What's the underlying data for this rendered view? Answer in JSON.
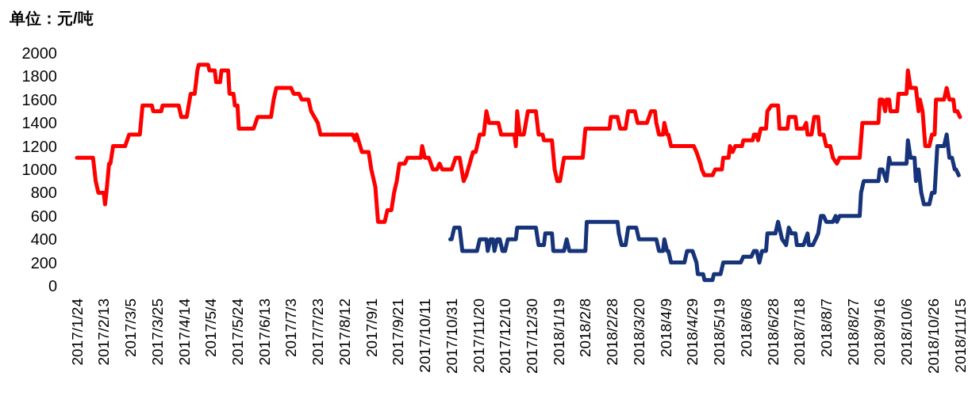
{
  "chart_data": {
    "type": "line",
    "ylabel": "单位：元/吨",
    "xlim": [
      "2017-01-24",
      "2018-11-15"
    ],
    "ylim": [
      0,
      2000
    ],
    "yticks": [
      0,
      200,
      400,
      600,
      800,
      1000,
      1200,
      1400,
      1600,
      1800,
      2000
    ],
    "xticks": [
      {
        "value": "2017-01-24",
        "label": "2017/1/24"
      },
      {
        "value": "2017-02-13",
        "label": "2017/2/13"
      },
      {
        "value": "2017-03-05",
        "label": "2017/3/5"
      },
      {
        "value": "2017-03-25",
        "label": "2017/3/25"
      },
      {
        "value": "2017-04-14",
        "label": "2017/4/14"
      },
      {
        "value": "2017-05-04",
        "label": "2017/5/4"
      },
      {
        "value": "2017-05-24",
        "label": "2017/5/24"
      },
      {
        "value": "2017-06-13",
        "label": "2017/6/13"
      },
      {
        "value": "2017-07-03",
        "label": "2017/7/3"
      },
      {
        "value": "2017-07-23",
        "label": "2017/7/23"
      },
      {
        "value": "2017-08-12",
        "label": "2017/8/12"
      },
      {
        "value": "2017-09-01",
        "label": "2017/9/1"
      },
      {
        "value": "2017-09-21",
        "label": "2017/9/21"
      },
      {
        "value": "2017-10-11",
        "label": "2017/10/11"
      },
      {
        "value": "2017-10-31",
        "label": "2017/10/31"
      },
      {
        "value": "2017-11-20",
        "label": "2017/11/20"
      },
      {
        "value": "2017-12-10",
        "label": "2017/12/10"
      },
      {
        "value": "2017-12-30",
        "label": "2017/12/30"
      },
      {
        "value": "2018-01-19",
        "label": "2018/1/19"
      },
      {
        "value": "2018-02-08",
        "label": "2018/2/8"
      },
      {
        "value": "2018-02-28",
        "label": "2018/2/28"
      },
      {
        "value": "2018-03-20",
        "label": "2018/3/20"
      },
      {
        "value": "2018-04-09",
        "label": "2018/4/9"
      },
      {
        "value": "2018-04-29",
        "label": "2018/4/29"
      },
      {
        "value": "2018-05-19",
        "label": "2018/5/19"
      },
      {
        "value": "2018-06-08",
        "label": "2018/6/8"
      },
      {
        "value": "2018-06-28",
        "label": "2018/6/28"
      },
      {
        "value": "2018-07-18",
        "label": "2018/7/18"
      },
      {
        "value": "2018-08-07",
        "label": "2018/8/7"
      },
      {
        "value": "2018-08-27",
        "label": "2018/8/27"
      },
      {
        "value": "2018-09-16",
        "label": "2018/9/16"
      },
      {
        "value": "2018-10-06",
        "label": "2018/10/6"
      },
      {
        "value": "2018-10-26",
        "label": "2018/10/26"
      },
      {
        "value": "2018-11-15",
        "label": "2018/11/15"
      }
    ],
    "grid": false,
    "marker": "none",
    "line_style": "solid",
    "series": [
      {
        "color": "#ff0000",
        "x": [
          "2017-01-24",
          "2017-02-05",
          "2017-02-07",
          "2017-02-09",
          "2017-02-13",
          "2017-02-14",
          "2017-02-15",
          "2017-02-17",
          "2017-02-18",
          "2017-02-20",
          "2017-03-01",
          "2017-03-04",
          "2017-03-12",
          "2017-03-14",
          "2017-03-21",
          "2017-03-22",
          "2017-03-28",
          "2017-03-29",
          "2017-04-10",
          "2017-04-12",
          "2017-04-16",
          "2017-04-19",
          "2017-04-22",
          "2017-04-24",
          "2017-04-25",
          "2017-05-02",
          "2017-05-03",
          "2017-05-07",
          "2017-05-08",
          "2017-05-11",
          "2017-05-12",
          "2017-05-17",
          "2017-05-18",
          "2017-05-21",
          "2017-05-22",
          "2017-05-24",
          "2017-05-25",
          "2017-06-05",
          "2017-06-08",
          "2017-06-18",
          "2017-06-20",
          "2017-06-22",
          "2017-07-03",
          "2017-07-05",
          "2017-07-09",
          "2017-07-11",
          "2017-07-16",
          "2017-07-18",
          "2017-07-23",
          "2017-07-25",
          "2017-08-18",
          "2017-08-20",
          "2017-08-21",
          "2017-08-25",
          "2017-08-30",
          "2017-09-01",
          "2017-09-04",
          "2017-09-06",
          "2017-09-11",
          "2017-09-13",
          "2017-09-16",
          "2017-09-18",
          "2017-09-20",
          "2017-09-22",
          "2017-09-26",
          "2017-09-28",
          "2017-10-08",
          "2017-10-09",
          "2017-10-11",
          "2017-10-14",
          "2017-10-17",
          "2017-10-20",
          "2017-10-22",
          "2017-10-24",
          "2017-10-31",
          "2017-11-03",
          "2017-11-06",
          "2017-11-09",
          "2017-11-11",
          "2017-11-16",
          "2017-11-18",
          "2017-11-21",
          "2017-11-24",
          "2017-11-26",
          "2017-11-28",
          "2017-12-05",
          "2017-12-07",
          "2017-12-17",
          "2017-12-18",
          "2017-12-19",
          "2017-12-21",
          "2017-12-24",
          "2017-12-27",
          "2018-01-02",
          "2018-01-04",
          "2018-01-07",
          "2018-01-08",
          "2018-01-14",
          "2018-01-16",
          "2018-01-18",
          "2018-01-20",
          "2018-01-23",
          "2018-02-06",
          "2018-02-08",
          "2018-02-26",
          "2018-02-27",
          "2018-03-04",
          "2018-03-06",
          "2018-03-10",
          "2018-03-12",
          "2018-03-17",
          "2018-03-19",
          "2018-03-26",
          "2018-03-29",
          "2018-04-01",
          "2018-04-02",
          "2018-04-04",
          "2018-04-07",
          "2018-04-08",
          "2018-04-10",
          "2018-04-11",
          "2018-04-13",
          "2018-04-30",
          "2018-05-02",
          "2018-05-05",
          "2018-05-06",
          "2018-05-08",
          "2018-05-14",
          "2018-05-16",
          "2018-05-21",
          "2018-05-22",
          "2018-05-26",
          "2018-05-27",
          "2018-05-29",
          "2018-05-31",
          "2018-06-05",
          "2018-06-06",
          "2018-06-13",
          "2018-06-14",
          "2018-06-16",
          "2018-06-17",
          "2018-06-19",
          "2018-06-23",
          "2018-06-24",
          "2018-06-27",
          "2018-07-02",
          "2018-07-03",
          "2018-07-09",
          "2018-07-10",
          "2018-07-15",
          "2018-07-16",
          "2018-07-21",
          "2018-07-23",
          "2018-07-24",
          "2018-07-27",
          "2018-07-29",
          "2018-08-01",
          "2018-08-02",
          "2018-08-05",
          "2018-08-07",
          "2018-08-10",
          "2018-08-12",
          "2018-08-15",
          "2018-08-17",
          "2018-09-01",
          "2018-09-03",
          "2018-09-15",
          "2018-09-16",
          "2018-09-18",
          "2018-09-20",
          "2018-09-21",
          "2018-09-23",
          "2018-09-24",
          "2018-09-29",
          "2018-09-30",
          "2018-10-06",
          "2018-10-07",
          "2018-10-09",
          "2018-10-13",
          "2018-10-15",
          "2018-10-16",
          "2018-10-18",
          "2018-10-20",
          "2018-10-23",
          "2018-10-25",
          "2018-10-27",
          "2018-10-28",
          "2018-11-03",
          "2018-11-05",
          "2018-11-07",
          "2018-11-10",
          "2018-11-11",
          "2018-11-13",
          "2018-11-15"
        ],
        "values": [
          1100,
          1100,
          900,
          800,
          800,
          700,
          800,
          1050,
          1050,
          1200,
          1200,
          1300,
          1300,
          1550,
          1550,
          1500,
          1500,
          1550,
          1550,
          1450,
          1450,
          1650,
          1650,
          1850,
          1900,
          1900,
          1850,
          1850,
          1750,
          1750,
          1850,
          1850,
          1650,
          1650,
          1550,
          1550,
          1350,
          1350,
          1450,
          1450,
          1600,
          1700,
          1700,
          1650,
          1650,
          1600,
          1600,
          1500,
          1400,
          1300,
          1300,
          1250,
          1300,
          1150,
          1150,
          1000,
          850,
          550,
          550,
          650,
          650,
          800,
          900,
          1050,
          1050,
          1100,
          1100,
          1200,
          1100,
          1100,
          1000,
          1000,
          1050,
          1000,
          1000,
          1100,
          1100,
          900,
          950,
          1150,
          1150,
          1300,
          1300,
          1500,
          1400,
          1400,
          1300,
          1300,
          1200,
          1500,
          1300,
          1300,
          1500,
          1500,
          1300,
          1300,
          1250,
          1250,
          1000,
          900,
          900,
          1100,
          1100,
          1350,
          1350,
          1450,
          1450,
          1350,
          1350,
          1500,
          1500,
          1400,
          1400,
          1500,
          1500,
          1400,
          1300,
          1300,
          1400,
          1300,
          1300,
          1200,
          1200,
          1150,
          1050,
          1000,
          950,
          950,
          1000,
          1000,
          1100,
          1100,
          1200,
          1150,
          1200,
          1200,
          1250,
          1250,
          1300,
          1300,
          1250,
          1350,
          1350,
          1500,
          1550,
          1550,
          1350,
          1350,
          1450,
          1450,
          1350,
          1350,
          1400,
          1300,
          1300,
          1450,
          1450,
          1300,
          1300,
          1200,
          1200,
          1100,
          1050,
          1100,
          1100,
          1400,
          1400,
          1600,
          1600,
          1500,
          1600,
          1600,
          1500,
          1500,
          1650,
          1650,
          1850,
          1700,
          1700,
          1500,
          1600,
          1500,
          1200,
          1200,
          1300,
          1300,
          1600,
          1600,
          1700,
          1600,
          1600,
          1500,
          1500,
          1450
        ]
      },
      {
        "color": "#17347a",
        "x": [
          "2017-10-30",
          "2017-10-31",
          "2017-11-02",
          "2017-11-06",
          "2017-11-08",
          "2017-11-19",
          "2017-11-21",
          "2017-11-26",
          "2017-11-27",
          "2017-11-29",
          "2017-12-01",
          "2017-12-02",
          "2017-12-04",
          "2017-12-06",
          "2017-12-08",
          "2017-12-10",
          "2017-12-12",
          "2017-12-18",
          "2017-12-19",
          "2018-01-02",
          "2018-01-04",
          "2018-01-08",
          "2018-01-09",
          "2018-01-14",
          "2018-01-15",
          "2018-01-23",
          "2018-01-25",
          "2018-01-27",
          "2018-02-08",
          "2018-02-09",
          "2018-03-04",
          "2018-03-05",
          "2018-03-07",
          "2018-03-10",
          "2018-03-12",
          "2018-03-18",
          "2018-03-20",
          "2018-04-02",
          "2018-04-04",
          "2018-04-07",
          "2018-04-08",
          "2018-04-10",
          "2018-04-11",
          "2018-04-13",
          "2018-04-23",
          "2018-04-25",
          "2018-04-29",
          "2018-05-02",
          "2018-05-03",
          "2018-05-07",
          "2018-05-08",
          "2018-05-14",
          "2018-05-15",
          "2018-05-20",
          "2018-05-22",
          "2018-06-04",
          "2018-06-06",
          "2018-06-12",
          "2018-06-14",
          "2018-06-16",
          "2018-06-18",
          "2018-06-20",
          "2018-06-23",
          "2018-06-24",
          "2018-06-30",
          "2018-07-02",
          "2018-07-05",
          "2018-07-08",
          "2018-07-10",
          "2018-07-12",
          "2018-07-15",
          "2018-07-16",
          "2018-07-21",
          "2018-07-24",
          "2018-07-25",
          "2018-07-28",
          "2018-07-30",
          "2018-08-01",
          "2018-08-03",
          "2018-08-05",
          "2018-08-07",
          "2018-08-12",
          "2018-08-14",
          "2018-08-15",
          "2018-08-17",
          "2018-09-01",
          "2018-09-02",
          "2018-09-04",
          "2018-09-15",
          "2018-09-16",
          "2018-09-18",
          "2018-09-21",
          "2018-09-23",
          "2018-09-24",
          "2018-10-06",
          "2018-10-07",
          "2018-10-09",
          "2018-10-12",
          "2018-10-13",
          "2018-10-15",
          "2018-10-17",
          "2018-10-19",
          "2018-10-23",
          "2018-10-25",
          "2018-10-27",
          "2018-10-29",
          "2018-11-03",
          "2018-11-05",
          "2018-11-07",
          "2018-11-09",
          "2018-11-11",
          "2018-11-12",
          "2018-11-14"
        ],
        "values": [
          400,
          400,
          500,
          500,
          300,
          300,
          400,
          400,
          300,
          400,
          400,
          300,
          400,
          400,
          300,
          300,
          400,
          400,
          500,
          500,
          350,
          350,
          450,
          450,
          300,
          300,
          400,
          300,
          300,
          550,
          550,
          450,
          350,
          350,
          500,
          500,
          400,
          400,
          300,
          300,
          400,
          300,
          300,
          200,
          200,
          300,
          300,
          200,
          100,
          100,
          50,
          50,
          100,
          100,
          200,
          200,
          250,
          250,
          300,
          300,
          200,
          300,
          300,
          450,
          450,
          550,
          400,
          350,
          500,
          450,
          450,
          350,
          350,
          450,
          350,
          350,
          400,
          450,
          600,
          600,
          550,
          550,
          600,
          550,
          600,
          600,
          800,
          900,
          900,
          1000,
          1000,
          900,
          1100,
          1050,
          1050,
          1250,
          1100,
          1100,
          900,
          1000,
          800,
          700,
          700,
          800,
          800,
          1200,
          1200,
          1300,
          1100,
          1100,
          1000,
          1000,
          950
        ]
      }
    ]
  }
}
